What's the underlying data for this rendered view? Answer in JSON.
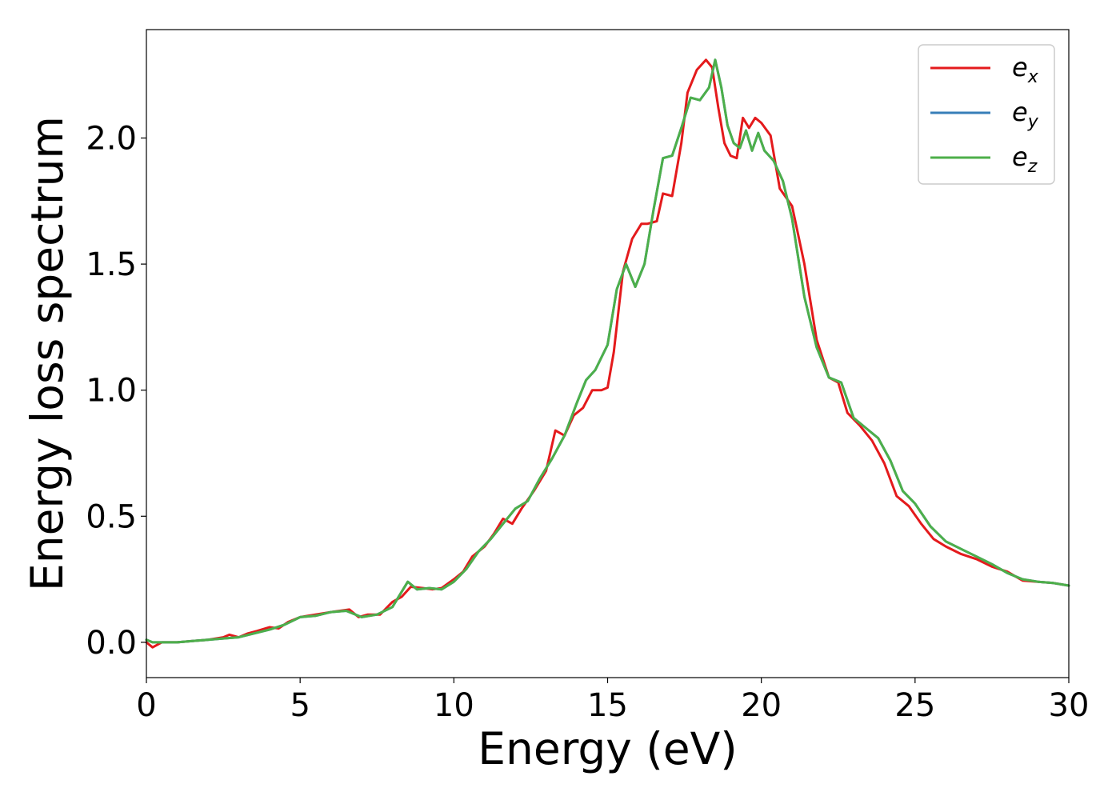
{
  "chart_data": {
    "type": "line",
    "xlabel": "Energy (eV)",
    "ylabel": "Energy loss spectrum",
    "xlim": [
      0,
      30
    ],
    "ylim": [
      -0.14,
      2.43
    ],
    "xticks": [
      0,
      5,
      10,
      15,
      20,
      25,
      30
    ],
    "xtick_labels": [
      "0",
      "5",
      "10",
      "15",
      "20",
      "25",
      "30"
    ],
    "yticks": [
      0.0,
      0.5,
      1.0,
      1.5,
      2.0
    ],
    "ytick_labels": [
      "0.0",
      "0.5",
      "1.0",
      "1.5",
      "2.0"
    ],
    "grid": false,
    "legend_position": "top-right",
    "series": [
      {
        "name": "e_x",
        "legend_base": "e",
        "legend_sub": "x",
        "color": "#e41a1c",
        "x": [
          0,
          0.2,
          0.5,
          1,
          1.5,
          2,
          2.5,
          2.7,
          3,
          3.3,
          3.6,
          4,
          4.3,
          4.6,
          5,
          5.5,
          6,
          6.3,
          6.6,
          6.9,
          7.2,
          7.6,
          8,
          8.3,
          8.6,
          9,
          9.3,
          9.6,
          10,
          10.3,
          10.6,
          11,
          11.3,
          11.6,
          11.9,
          12.2,
          12.6,
          13,
          13.3,
          13.6,
          13.9,
          14.2,
          14.5,
          14.8,
          15,
          15.2,
          15.5,
          15.8,
          16.1,
          16.3,
          16.6,
          16.8,
          17.1,
          17.4,
          17.6,
          17.9,
          18.2,
          18.4,
          18.6,
          18.8,
          19,
          19.2,
          19.4,
          19.6,
          19.8,
          20,
          20.3,
          20.6,
          21,
          21.4,
          21.8,
          22.2,
          22.5,
          22.8,
          23.2,
          23.6,
          24,
          24.4,
          24.8,
          25.2,
          25.6,
          26,
          26.5,
          27,
          27.5,
          28,
          28.5,
          29,
          29.5,
          30
        ],
        "y": [
          0.0,
          -0.02,
          0.0,
          0.0,
          0.005,
          0.01,
          0.02,
          0.03,
          0.02,
          0.035,
          0.045,
          0.06,
          0.055,
          0.08,
          0.1,
          0.11,
          0.12,
          0.125,
          0.13,
          0.1,
          0.11,
          0.11,
          0.16,
          0.18,
          0.22,
          0.215,
          0.21,
          0.215,
          0.25,
          0.28,
          0.34,
          0.38,
          0.43,
          0.49,
          0.47,
          0.53,
          0.6,
          0.68,
          0.84,
          0.82,
          0.9,
          0.93,
          1.0,
          1.0,
          1.01,
          1.15,
          1.47,
          1.6,
          1.66,
          1.66,
          1.67,
          1.78,
          1.77,
          1.98,
          2.18,
          2.27,
          2.31,
          2.28,
          2.12,
          1.98,
          1.93,
          1.92,
          2.08,
          2.04,
          2.08,
          2.06,
          2.01,
          1.8,
          1.73,
          1.5,
          1.2,
          1.05,
          1.03,
          0.91,
          0.86,
          0.8,
          0.71,
          0.58,
          0.54,
          0.47,
          0.41,
          0.38,
          0.35,
          0.33,
          0.3,
          0.28,
          0.245,
          0.24,
          0.235,
          0.225
        ]
      },
      {
        "name": "e_y",
        "legend_base": "e",
        "legend_sub": "y",
        "color": "#377eb8",
        "x": [
          0,
          0.2,
          0.5,
          1,
          1.5,
          2,
          2.5,
          3,
          3.5,
          4,
          4.5,
          5,
          5.5,
          6,
          6.5,
          7,
          7.5,
          8,
          8.5,
          8.8,
          9.2,
          9.6,
          10,
          10.4,
          10.8,
          11.2,
          11.6,
          12,
          12.4,
          12.8,
          13.2,
          13.6,
          14,
          14.3,
          14.6,
          15,
          15.3,
          15.6,
          15.9,
          16.2,
          16.5,
          16.8,
          17.1,
          17.4,
          17.7,
          18,
          18.3,
          18.5,
          18.7,
          18.9,
          19.1,
          19.3,
          19.5,
          19.7,
          19.9,
          20.1,
          20.4,
          20.7,
          21,
          21.4,
          21.8,
          22.2,
          22.6,
          23,
          23.4,
          23.8,
          24.2,
          24.6,
          25,
          25.5,
          26,
          26.5,
          27,
          27.5,
          28,
          28.5,
          29,
          29.5,
          30
        ],
        "y": [
          0.01,
          0.0,
          0.0,
          0.0,
          0.005,
          0.01,
          0.015,
          0.02,
          0.035,
          0.05,
          0.07,
          0.1,
          0.105,
          0.12,
          0.125,
          0.1,
          0.11,
          0.14,
          0.24,
          0.21,
          0.215,
          0.21,
          0.24,
          0.29,
          0.36,
          0.41,
          0.47,
          0.53,
          0.56,
          0.65,
          0.73,
          0.82,
          0.95,
          1.04,
          1.08,
          1.18,
          1.4,
          1.5,
          1.41,
          1.5,
          1.72,
          1.92,
          1.93,
          2.04,
          2.16,
          2.15,
          2.2,
          2.31,
          2.2,
          2.05,
          1.98,
          1.96,
          2.03,
          1.95,
          2.02,
          1.95,
          1.91,
          1.83,
          1.68,
          1.37,
          1.17,
          1.05,
          1.03,
          0.89,
          0.85,
          0.81,
          0.72,
          0.6,
          0.55,
          0.46,
          0.4,
          0.37,
          0.34,
          0.31,
          0.275,
          0.25,
          0.24,
          0.235,
          0.225
        ]
      },
      {
        "name": "e_z",
        "legend_base": "e",
        "legend_sub": "z",
        "color": "#4daf4a",
        "x": [
          0,
          0.2,
          0.5,
          1,
          1.5,
          2,
          2.5,
          3,
          3.5,
          4,
          4.5,
          5,
          5.5,
          6,
          6.5,
          7,
          7.5,
          8,
          8.5,
          8.8,
          9.2,
          9.6,
          10,
          10.4,
          10.8,
          11.2,
          11.6,
          12,
          12.4,
          12.8,
          13.2,
          13.6,
          14,
          14.3,
          14.6,
          15,
          15.3,
          15.6,
          15.9,
          16.2,
          16.5,
          16.8,
          17.1,
          17.4,
          17.7,
          18,
          18.3,
          18.5,
          18.7,
          18.9,
          19.1,
          19.3,
          19.5,
          19.7,
          19.9,
          20.1,
          20.4,
          20.7,
          21,
          21.4,
          21.8,
          22.2,
          22.6,
          23,
          23.4,
          23.8,
          24.2,
          24.6,
          25,
          25.5,
          26,
          26.5,
          27,
          27.5,
          28,
          28.5,
          29,
          29.5,
          30
        ],
        "y": [
          0.01,
          0.0,
          0.0,
          0.0,
          0.005,
          0.01,
          0.015,
          0.02,
          0.035,
          0.05,
          0.07,
          0.1,
          0.105,
          0.12,
          0.125,
          0.1,
          0.11,
          0.14,
          0.24,
          0.21,
          0.215,
          0.21,
          0.24,
          0.29,
          0.36,
          0.41,
          0.47,
          0.53,
          0.56,
          0.65,
          0.73,
          0.82,
          0.95,
          1.04,
          1.08,
          1.18,
          1.4,
          1.5,
          1.41,
          1.5,
          1.72,
          1.92,
          1.93,
          2.04,
          2.16,
          2.15,
          2.2,
          2.31,
          2.2,
          2.05,
          1.98,
          1.96,
          2.03,
          1.95,
          2.02,
          1.95,
          1.91,
          1.83,
          1.68,
          1.37,
          1.17,
          1.05,
          1.03,
          0.89,
          0.85,
          0.81,
          0.72,
          0.6,
          0.55,
          0.46,
          0.4,
          0.37,
          0.34,
          0.31,
          0.275,
          0.25,
          0.24,
          0.235,
          0.225
        ]
      }
    ]
  }
}
